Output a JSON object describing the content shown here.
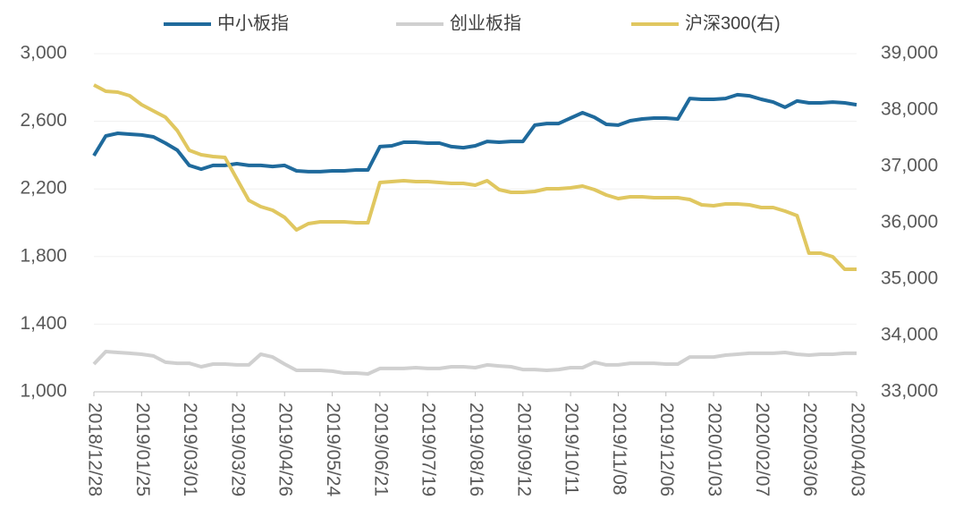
{
  "chart_data": {
    "type": "line",
    "categories": [
      "2018/12/28",
      null,
      null,
      null,
      "2019/01/25",
      null,
      null,
      null,
      "2019/03/01",
      null,
      null,
      null,
      "2019/03/29",
      null,
      null,
      null,
      "2019/04/26",
      null,
      null,
      null,
      "2019/05/24",
      null,
      null,
      null,
      "2019/06/21",
      null,
      null,
      null,
      "2019/07/19",
      null,
      null,
      null,
      "2019/08/16",
      null,
      null,
      null,
      "2019/09/12",
      null,
      null,
      null,
      "2019/10/11",
      null,
      null,
      null,
      "2019/11/08",
      null,
      null,
      null,
      "2019/12/06",
      null,
      null,
      null,
      "2020/01/03",
      null,
      null,
      null,
      "2020/02/07",
      null,
      null,
      null,
      "2020/03/06",
      null,
      null,
      null,
      "2020/04/03"
    ],
    "series": [
      {
        "name": "中小板指",
        "color": "#1f6a9c",
        "values": [
          2397,
          2513,
          2529,
          2524,
          2519,
          2508,
          2471,
          2429,
          2339,
          2317,
          2339,
          2339,
          2349,
          2339,
          2339,
          2333,
          2339,
          2307,
          2302,
          2302,
          2307,
          2307,
          2312,
          2312,
          2450,
          2455,
          2476,
          2476,
          2471,
          2471,
          2450,
          2444,
          2455,
          2481,
          2476,
          2481,
          2481,
          2577,
          2587,
          2587,
          2619,
          2651,
          2624,
          2582,
          2577,
          2603,
          2614,
          2619,
          2619,
          2614,
          2735,
          2730,
          2730,
          2735,
          2757,
          2751,
          2730,
          2714,
          2683,
          2720,
          2709,
          2709,
          2714,
          2709,
          2698
        ]
      },
      {
        "name": "创业板指",
        "color": "#d0d0d0",
        "values": [
          1164,
          1238,
          1233,
          1228,
          1222,
          1212,
          1175,
          1169,
          1169,
          1148,
          1164,
          1164,
          1159,
          1159,
          1222,
          1206,
          1164,
          1127,
          1127,
          1127,
          1122,
          1111,
          1111,
          1106,
          1138,
          1138,
          1138,
          1143,
          1138,
          1138,
          1148,
          1148,
          1143,
          1159,
          1153,
          1148,
          1132,
          1132,
          1127,
          1132,
          1143,
          1143,
          1175,
          1159,
          1159,
          1169,
          1169,
          1169,
          1164,
          1164,
          1206,
          1206,
          1206,
          1217,
          1222,
          1228,
          1228,
          1228,
          1233,
          1222,
          1217,
          1222,
          1222,
          1228,
          1228
        ]
      },
      {
        "name": "沪深300(右)",
        "color": "#e0c760",
        "axis": "y2",
        "values": [
          38444,
          38333,
          38317,
          38254,
          38095,
          37984,
          37873,
          37635,
          37286,
          37206,
          37175,
          37159,
          36778,
          36397,
          36286,
          36222,
          36095,
          35873,
          35984,
          36016,
          36016,
          36016,
          36000,
          36000,
          36714,
          36730,
          36746,
          36730,
          36730,
          36714,
          36698,
          36698,
          36667,
          36746,
          36587,
          36540,
          36540,
          36556,
          36603,
          36603,
          36619,
          36651,
          36587,
          36492,
          36429,
          36460,
          36460,
          36444,
          36444,
          36444,
          36413,
          36317,
          36302,
          36333,
          36333,
          36317,
          36270,
          36270,
          36206,
          36127,
          35460,
          35460,
          35397,
          35175,
          35175
        ]
      }
    ],
    "ylim": [
      1000,
      3000
    ],
    "yticks": [
      {
        "value": 1000,
        "label": "1,000"
      },
      {
        "value": 1400,
        "label": "1,400"
      },
      {
        "value": 1800,
        "label": "1,800"
      },
      {
        "value": 2200,
        "label": "2,200"
      },
      {
        "value": 2600,
        "label": "2,600"
      },
      {
        "value": 3000,
        "label": "3,000"
      }
    ],
    "y2lim": [
      33000,
      39000
    ],
    "y2ticks": [
      {
        "value": 33000,
        "label": "33,000"
      },
      {
        "value": 34000,
        "label": "34,000"
      },
      {
        "value": 35000,
        "label": "35,000"
      },
      {
        "value": 36000,
        "label": "36,000"
      },
      {
        "value": 37000,
        "label": "37,000"
      },
      {
        "value": 38000,
        "label": "38,000"
      },
      {
        "value": 39000,
        "label": "39,000"
      }
    ],
    "grid": true,
    "legend": "top"
  }
}
